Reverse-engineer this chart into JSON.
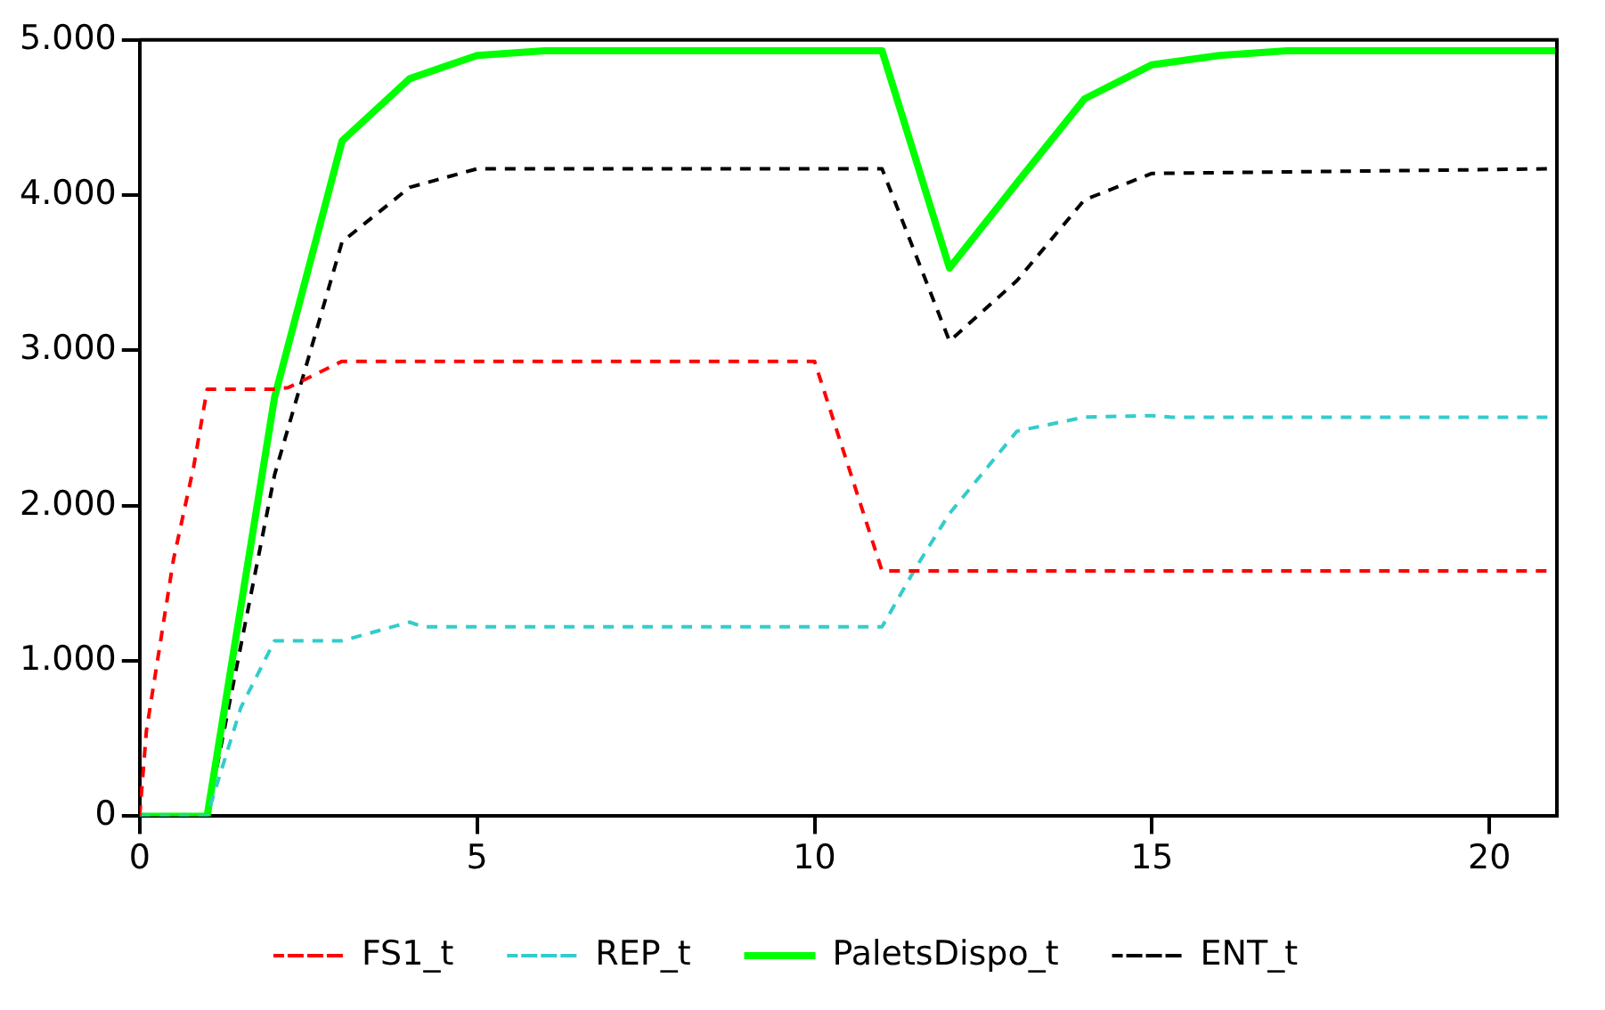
{
  "chart_data": {
    "type": "line",
    "xlim": [
      0,
      21
    ],
    "xticks": [
      0,
      5,
      10,
      15,
      20
    ],
    "ylim": [
      0,
      5000
    ],
    "yticks": [
      {
        "value": 0,
        "label": "0"
      },
      {
        "value": 1000,
        "label": "1.000"
      },
      {
        "value": 2000,
        "label": "2.000"
      },
      {
        "value": 3000,
        "label": "3.000"
      },
      {
        "value": 4000,
        "label": "4.000"
      },
      {
        "value": 5000,
        "label": "5.000"
      }
    ],
    "grid": false,
    "legend": "bottom",
    "marker": "none",
    "series": [
      {
        "name": "FS1_t",
        "color": "#ff0000",
        "line_style": "dashed",
        "x": [
          0,
          0.1,
          0.5,
          0.8,
          1,
          2,
          2.2,
          3,
          10,
          11,
          21
        ],
        "values": [
          0,
          550,
          1650,
          2250,
          2750,
          2750,
          2760,
          2930,
          2930,
          1580,
          1580
        ]
      },
      {
        "name": "REP_t",
        "color": "#33cccc",
        "line_style": "dashed",
        "x": [
          0,
          1,
          1.5,
          2,
          3,
          4,
          4.2,
          11,
          11.5,
          12,
          13,
          14,
          15,
          15.3,
          21
        ],
        "values": [
          0,
          0,
          700,
          1130,
          1130,
          1250,
          1220,
          1220,
          1600,
          1950,
          2480,
          2570,
          2580,
          2570,
          2570
        ]
      },
      {
        "name": "PaletsDispo_t",
        "color": "#00ff00",
        "line_style": "solid",
        "x": [
          0,
          1,
          2,
          3,
          4,
          5,
          6,
          11,
          12,
          13,
          14,
          15,
          16,
          17,
          21
        ],
        "values": [
          0,
          0,
          2700,
          4350,
          4750,
          4900,
          4930,
          4930,
          3530,
          4080,
          4620,
          4840,
          4900,
          4930,
          4930
        ]
      },
      {
        "name": "ENT_t",
        "color": "#000000",
        "line_style": "dashed",
        "x": [
          0,
          1,
          2,
          3,
          4,
          5,
          11,
          12,
          13,
          14,
          15,
          21
        ],
        "values": [
          0,
          0,
          2200,
          3700,
          4050,
          4170,
          4170,
          3060,
          3450,
          3970,
          4140,
          4170
        ]
      }
    ]
  }
}
